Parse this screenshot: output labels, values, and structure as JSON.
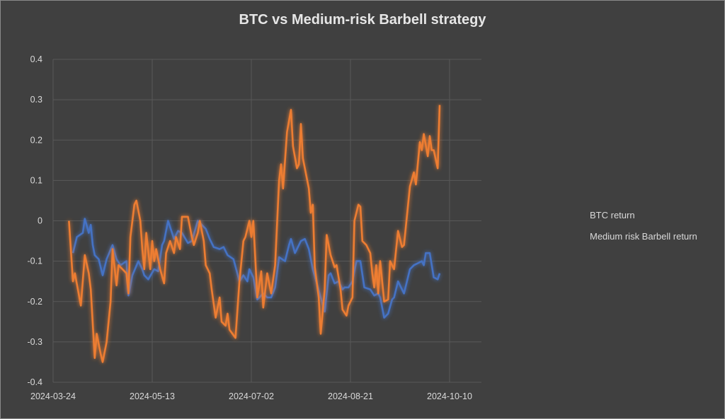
{
  "chart_data": {
    "type": "line",
    "title": "BTC vs Medium-risk Barbell strategy",
    "xlabel": "",
    "ylabel": "",
    "xlim": [
      "2024-03-24",
      "2024-10-10"
    ],
    "ylim": [
      -0.4,
      0.4
    ],
    "x_ticks": [
      "2024-03-24",
      "2024-05-13",
      "2024-07-02",
      "2024-08-21",
      "2024-10-10"
    ],
    "y_ticks": [
      0.4,
      0.3,
      0.2,
      0.1,
      0,
      -0.1,
      -0.2,
      -0.3,
      -0.4
    ],
    "y_tick_labels": [
      "0.4",
      "0.3",
      "0.2",
      "0.1",
      "0",
      "-0.1",
      "-0.2",
      "-0.3",
      "-0.4"
    ],
    "grid": true,
    "legend_position": "right",
    "background": "#404040",
    "series": [
      {
        "name": "BTC return",
        "color": "#4472C4",
        "points": [
          [
            "2024-04-03",
            -0.08
          ],
          [
            "2024-04-05",
            -0.04
          ],
          [
            "2024-04-08",
            -0.03
          ],
          [
            "2024-04-09",
            0.005
          ],
          [
            "2024-04-11",
            -0.03
          ],
          [
            "2024-04-12",
            -0.01
          ],
          [
            "2024-04-13",
            -0.06
          ],
          [
            "2024-04-14",
            -0.085
          ],
          [
            "2024-04-16",
            -0.095
          ],
          [
            "2024-04-18",
            -0.135
          ],
          [
            "2024-04-20",
            -0.095
          ],
          [
            "2024-04-23",
            -0.06
          ],
          [
            "2024-04-25",
            -0.095
          ],
          [
            "2024-04-27",
            -0.11
          ],
          [
            "2024-04-30",
            -0.1
          ],
          [
            "2024-05-01",
            -0.185
          ],
          [
            "2024-05-03",
            -0.135
          ],
          [
            "2024-05-06",
            -0.1
          ],
          [
            "2024-05-08",
            -0.12
          ],
          [
            "2024-05-09",
            -0.135
          ],
          [
            "2024-05-11",
            -0.145
          ],
          [
            "2024-05-14",
            -0.12
          ],
          [
            "2024-05-16",
            -0.125
          ],
          [
            "2024-05-18",
            -0.06
          ],
          [
            "2024-05-19",
            -0.05
          ],
          [
            "2024-05-21",
            0.0
          ],
          [
            "2024-05-24",
            -0.045
          ],
          [
            "2024-05-26",
            -0.025
          ],
          [
            "2024-05-28",
            -0.03
          ],
          [
            "2024-05-31",
            -0.055
          ],
          [
            "2024-06-02",
            -0.05
          ],
          [
            "2024-06-05",
            0.0
          ],
          [
            "2024-06-07",
            -0.01
          ],
          [
            "2024-06-09",
            -0.02
          ],
          [
            "2024-06-11",
            -0.045
          ],
          [
            "2024-06-13",
            -0.065
          ],
          [
            "2024-06-16",
            -0.07
          ],
          [
            "2024-06-18",
            -0.065
          ],
          [
            "2024-06-20",
            -0.085
          ],
          [
            "2024-06-23",
            -0.095
          ],
          [
            "2024-06-26",
            -0.15
          ],
          [
            "2024-06-28",
            -0.135
          ],
          [
            "2024-06-30",
            -0.15
          ],
          [
            "2024-07-01",
            -0.12
          ],
          [
            "2024-07-03",
            -0.14
          ],
          [
            "2024-07-05",
            -0.195
          ],
          [
            "2024-07-07",
            -0.185
          ],
          [
            "2024-07-08",
            -0.18
          ],
          [
            "2024-07-10",
            -0.19
          ],
          [
            "2024-07-12",
            -0.19
          ],
          [
            "2024-07-14",
            -0.165
          ],
          [
            "2024-07-16",
            -0.09
          ],
          [
            "2024-07-19",
            -0.1
          ],
          [
            "2024-07-21",
            -0.06
          ],
          [
            "2024-07-22",
            -0.045
          ],
          [
            "2024-07-24",
            -0.08
          ],
          [
            "2024-07-27",
            -0.05
          ],
          [
            "2024-07-29",
            -0.045
          ],
          [
            "2024-07-31",
            -0.07
          ],
          [
            "2024-08-02",
            -0.12
          ],
          [
            "2024-08-06",
            -0.19
          ],
          [
            "2024-08-08",
            -0.225
          ],
          [
            "2024-08-10",
            -0.135
          ],
          [
            "2024-08-11",
            -0.13
          ],
          [
            "2024-08-13",
            -0.155
          ],
          [
            "2024-08-15",
            -0.15
          ],
          [
            "2024-08-17",
            -0.17
          ],
          [
            "2024-08-18",
            -0.165
          ],
          [
            "2024-08-20",
            -0.165
          ],
          [
            "2024-08-22",
            -0.15
          ],
          [
            "2024-08-24",
            -0.1
          ],
          [
            "2024-08-26",
            -0.1
          ],
          [
            "2024-08-28",
            -0.165
          ],
          [
            "2024-08-31",
            -0.17
          ],
          [
            "2024-09-02",
            -0.185
          ],
          [
            "2024-09-04",
            -0.18
          ],
          [
            "2024-09-05",
            -0.19
          ],
          [
            "2024-09-07",
            -0.24
          ],
          [
            "2024-09-09",
            -0.23
          ],
          [
            "2024-09-11",
            -0.195
          ],
          [
            "2024-09-12",
            -0.19
          ],
          [
            "2024-09-14",
            -0.15
          ],
          [
            "2024-09-17",
            -0.18
          ],
          [
            "2024-09-20",
            -0.12
          ],
          [
            "2024-09-22",
            -0.11
          ],
          [
            "2024-09-24",
            -0.105
          ],
          [
            "2024-09-26",
            -0.1
          ],
          [
            "2024-09-27",
            -0.11
          ],
          [
            "2024-09-28",
            -0.08
          ],
          [
            "2024-09-30",
            -0.08
          ],
          [
            "2024-10-02",
            -0.14
          ],
          [
            "2024-10-04",
            -0.145
          ],
          [
            "2024-10-05",
            -0.13
          ]
        ]
      },
      {
        "name": "Medium risk Barbell return",
        "color": "#ED7D31",
        "points": [
          [
            "2024-04-01",
            0.0
          ],
          [
            "2024-04-03",
            -0.15
          ],
          [
            "2024-04-04",
            -0.13
          ],
          [
            "2024-04-07",
            -0.21
          ],
          [
            "2024-04-09",
            -0.085
          ],
          [
            "2024-04-11",
            -0.13
          ],
          [
            "2024-04-12",
            -0.17
          ],
          [
            "2024-04-14",
            -0.34
          ],
          [
            "2024-04-15",
            -0.28
          ],
          [
            "2024-04-17",
            -0.33
          ],
          [
            "2024-04-18",
            -0.35
          ],
          [
            "2024-04-20",
            -0.3
          ],
          [
            "2024-04-22",
            -0.2
          ],
          [
            "2024-04-23",
            -0.07
          ],
          [
            "2024-04-25",
            -0.16
          ],
          [
            "2024-04-26",
            -0.11
          ],
          [
            "2024-04-28",
            -0.12
          ],
          [
            "2024-04-30",
            -0.13
          ],
          [
            "2024-05-01",
            -0.18
          ],
          [
            "2024-05-02",
            -0.04
          ],
          [
            "2024-05-04",
            0.04
          ],
          [
            "2024-05-05",
            0.05
          ],
          [
            "2024-05-07",
            0.0
          ],
          [
            "2024-05-08",
            -0.07
          ],
          [
            "2024-05-09",
            -0.12
          ],
          [
            "2024-05-10",
            -0.03
          ],
          [
            "2024-05-12",
            -0.12
          ],
          [
            "2024-05-13",
            -0.05
          ],
          [
            "2024-05-14",
            -0.1
          ],
          [
            "2024-05-15",
            -0.07
          ],
          [
            "2024-05-17",
            -0.12
          ],
          [
            "2024-05-19",
            -0.155
          ],
          [
            "2024-05-20",
            -0.08
          ],
          [
            "2024-05-22",
            -0.05
          ],
          [
            "2024-05-24",
            -0.08
          ],
          [
            "2024-05-25",
            -0.04
          ],
          [
            "2024-05-27",
            -0.07
          ],
          [
            "2024-05-28",
            0.01
          ],
          [
            "2024-05-31",
            0.01
          ],
          [
            "2024-06-02",
            -0.04
          ],
          [
            "2024-06-03",
            -0.06
          ],
          [
            "2024-06-05",
            -0.03
          ],
          [
            "2024-06-06",
            0.0
          ],
          [
            "2024-06-08",
            -0.05
          ],
          [
            "2024-06-09",
            -0.11
          ],
          [
            "2024-06-11",
            -0.13
          ],
          [
            "2024-06-12",
            -0.17
          ],
          [
            "2024-06-14",
            -0.24
          ],
          [
            "2024-06-16",
            -0.19
          ],
          [
            "2024-06-17",
            -0.25
          ],
          [
            "2024-06-19",
            -0.26
          ],
          [
            "2024-06-20",
            -0.23
          ],
          [
            "2024-06-21",
            -0.27
          ],
          [
            "2024-06-24",
            -0.29
          ],
          [
            "2024-06-26",
            -0.15
          ],
          [
            "2024-06-28",
            -0.05
          ],
          [
            "2024-06-29",
            -0.04
          ],
          [
            "2024-07-01",
            0.0
          ],
          [
            "2024-07-02",
            -0.04
          ],
          [
            "2024-07-03",
            0.0
          ],
          [
            "2024-07-05",
            -0.19
          ],
          [
            "2024-07-07",
            -0.125
          ],
          [
            "2024-07-08",
            -0.215
          ],
          [
            "2024-07-10",
            -0.13
          ],
          [
            "2024-07-12",
            -0.18
          ],
          [
            "2024-07-14",
            -0.11
          ],
          [
            "2024-07-16",
            0.1
          ],
          [
            "2024-07-17",
            0.14
          ],
          [
            "2024-07-18",
            0.08
          ],
          [
            "2024-07-20",
            0.22
          ],
          [
            "2024-07-22",
            0.275
          ],
          [
            "2024-07-23",
            0.185
          ],
          [
            "2024-07-25",
            0.13
          ],
          [
            "2024-07-26",
            0.14
          ],
          [
            "2024-07-27",
            0.24
          ],
          [
            "2024-07-28",
            0.155
          ],
          [
            "2024-07-31",
            0.08
          ],
          [
            "2024-08-01",
            0.02
          ],
          [
            "2024-08-02",
            0.04
          ],
          [
            "2024-08-03",
            -0.115
          ],
          [
            "2024-08-05",
            -0.19
          ],
          [
            "2024-08-06",
            -0.28
          ],
          [
            "2024-08-08",
            -0.17
          ],
          [
            "2024-08-09",
            -0.035
          ],
          [
            "2024-08-11",
            -0.085
          ],
          [
            "2024-08-13",
            -0.115
          ],
          [
            "2024-08-14",
            -0.11
          ],
          [
            "2024-08-16",
            -0.17
          ],
          [
            "2024-08-17",
            -0.22
          ],
          [
            "2024-08-19",
            -0.235
          ],
          [
            "2024-08-20",
            -0.21
          ],
          [
            "2024-08-22",
            -0.19
          ],
          [
            "2024-08-23",
            0.0
          ],
          [
            "2024-08-25",
            0.04
          ],
          [
            "2024-08-26",
            0.035
          ],
          [
            "2024-08-27",
            -0.05
          ],
          [
            "2024-08-29",
            -0.06
          ],
          [
            "2024-08-31",
            -0.08
          ],
          [
            "2024-09-01",
            -0.13
          ],
          [
            "2024-09-02",
            -0.165
          ],
          [
            "2024-09-03",
            -0.11
          ],
          [
            "2024-09-04",
            -0.18
          ],
          [
            "2024-09-05",
            -0.1
          ],
          [
            "2024-09-07",
            -0.2
          ],
          [
            "2024-09-09",
            -0.195
          ],
          [
            "2024-09-10",
            -0.1
          ],
          [
            "2024-09-12",
            -0.12
          ],
          [
            "2024-09-14",
            -0.025
          ],
          [
            "2024-09-16",
            -0.065
          ],
          [
            "2024-09-17",
            -0.06
          ],
          [
            "2024-09-20",
            0.085
          ],
          [
            "2024-09-22",
            0.12
          ],
          [
            "2024-09-23",
            0.09
          ],
          [
            "2024-09-25",
            0.195
          ],
          [
            "2024-09-26",
            0.175
          ],
          [
            "2024-09-27",
            0.215
          ],
          [
            "2024-09-29",
            0.16
          ],
          [
            "2024-09-30",
            0.21
          ],
          [
            "2024-10-01",
            0.175
          ],
          [
            "2024-10-02",
            0.175
          ],
          [
            "2024-10-04",
            0.13
          ],
          [
            "2024-10-05",
            0.287
          ]
        ]
      }
    ]
  }
}
